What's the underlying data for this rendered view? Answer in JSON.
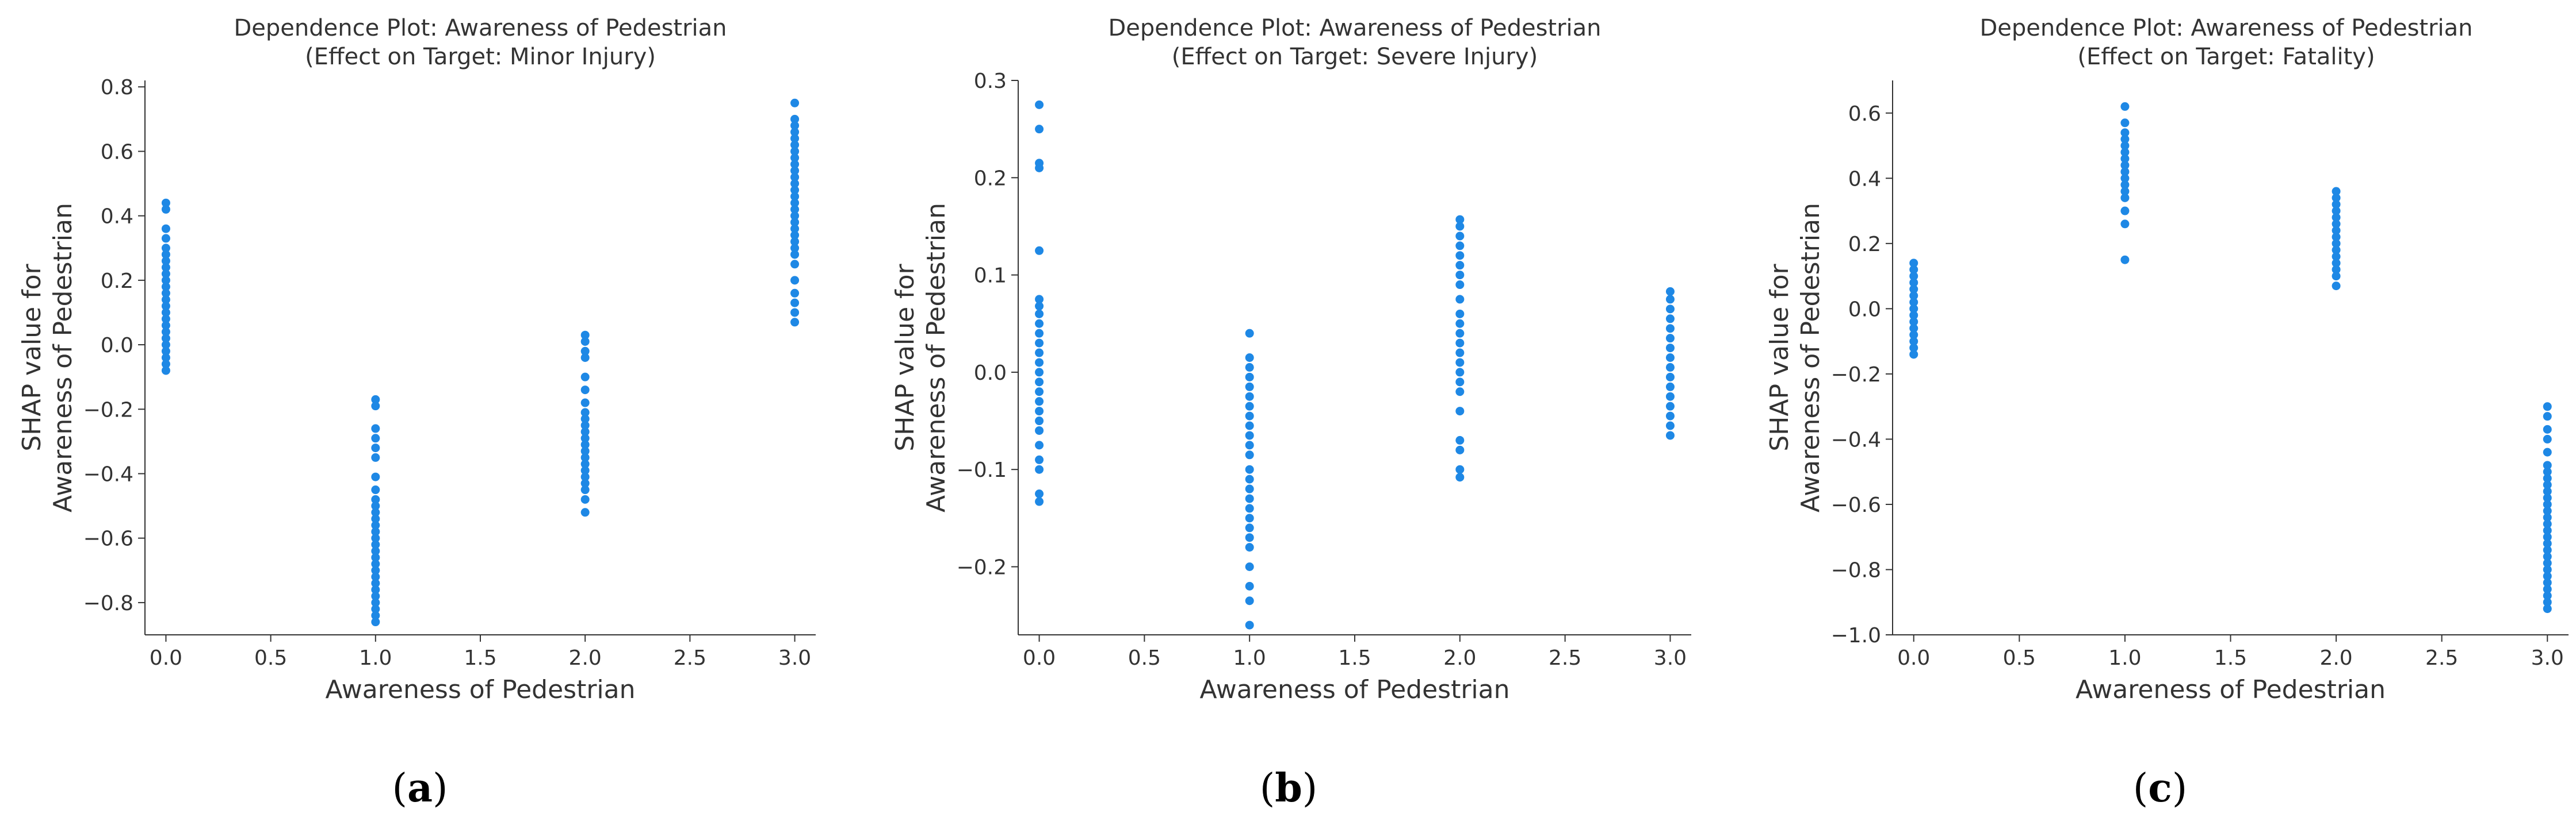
{
  "figure": {
    "point_color": "#1E88E5",
    "axis_color": "#333333"
  },
  "chart_data": [
    {
      "type": "scatter",
      "title_line1": "Dependence Plot: Awareness of Pedestrian",
      "title_line2": "(Effect on Target: Minor Injury)",
      "xlabel": "Awareness of Pedestrian",
      "ylabel_line1": "SHAP value for",
      "ylabel_line2": "Awareness of Pedestrian",
      "xlim": [
        -0.1,
        3.1
      ],
      "ylim": [
        -0.9,
        0.82
      ],
      "xticks": [
        0.0,
        0.5,
        1.0,
        1.5,
        2.0,
        2.5,
        3.0
      ],
      "xtick_labels": [
        "0.0",
        "0.5",
        "1.0",
        "1.5",
        "2.0",
        "2.5",
        "3.0"
      ],
      "yticks": [
        -0.8,
        -0.6,
        -0.4,
        -0.2,
        0.0,
        0.2,
        0.4,
        0.6,
        0.8
      ],
      "ytick_labels": [
        "−0.8",
        "−0.6",
        "−0.4",
        "−0.2",
        "0.0",
        "0.2",
        "0.4",
        "0.6",
        "0.8"
      ],
      "caption_letter": "a",
      "points": [
        {
          "x": 0,
          "y": [
            0.44,
            0.42,
            0.36,
            0.33,
            0.3,
            0.28,
            0.26,
            0.24,
            0.22,
            0.2,
            0.18,
            0.16,
            0.14,
            0.12,
            0.1,
            0.08,
            0.06,
            0.04,
            0.02,
            0.0,
            -0.02,
            -0.04,
            -0.06,
            -0.08
          ]
        },
        {
          "x": 1,
          "y": [
            -0.17,
            -0.19,
            -0.26,
            -0.29,
            -0.32,
            -0.35,
            -0.41,
            -0.45,
            -0.48,
            -0.5,
            -0.52,
            -0.54,
            -0.56,
            -0.58,
            -0.6,
            -0.62,
            -0.64,
            -0.66,
            -0.68,
            -0.7,
            -0.72,
            -0.74,
            -0.76,
            -0.78,
            -0.8,
            -0.82,
            -0.84,
            -0.86
          ]
        },
        {
          "x": 2,
          "y": [
            0.03,
            0.01,
            -0.02,
            -0.04,
            -0.1,
            -0.14,
            -0.18,
            -0.21,
            -0.23,
            -0.25,
            -0.27,
            -0.29,
            -0.31,
            -0.33,
            -0.35,
            -0.37,
            -0.39,
            -0.41,
            -0.43,
            -0.45,
            -0.48,
            -0.52
          ]
        },
        {
          "x": 3,
          "y": [
            0.75,
            0.7,
            0.68,
            0.66,
            0.64,
            0.62,
            0.6,
            0.58,
            0.56,
            0.54,
            0.52,
            0.5,
            0.48,
            0.46,
            0.44,
            0.42,
            0.4,
            0.38,
            0.36,
            0.34,
            0.32,
            0.3,
            0.28,
            0.25,
            0.2,
            0.16,
            0.13,
            0.1,
            0.07
          ]
        }
      ]
    },
    {
      "type": "scatter",
      "title_line1": "Dependence Plot: Awareness of Pedestrian",
      "title_line2": "(Effect on Target: Severe Injury)",
      "xlabel": "Awareness of Pedestrian",
      "ylabel_line1": "SHAP value for",
      "ylabel_line2": "Awareness of Pedestrian",
      "xlim": [
        -0.1,
        3.1
      ],
      "ylim": [
        -0.27,
        0.3
      ],
      "xticks": [
        0.0,
        0.5,
        1.0,
        1.5,
        2.0,
        2.5,
        3.0
      ],
      "xtick_labels": [
        "0.0",
        "0.5",
        "1.0",
        "1.5",
        "2.0",
        "2.5",
        "3.0"
      ],
      "yticks": [
        -0.2,
        -0.1,
        0.0,
        0.1,
        0.2,
        0.3
      ],
      "ytick_labels": [
        "−0.2",
        "−0.1",
        "0.0",
        "0.1",
        "0.2",
        "0.3"
      ],
      "caption_letter": "b",
      "points": [
        {
          "x": 0,
          "y": [
            0.275,
            0.25,
            0.215,
            0.21,
            0.125,
            0.075,
            0.068,
            0.06,
            0.05,
            0.04,
            0.03,
            0.02,
            0.01,
            0.0,
            -0.01,
            -0.02,
            -0.03,
            -0.04,
            -0.05,
            -0.06,
            -0.075,
            -0.09,
            -0.1,
            -0.125,
            -0.133
          ]
        },
        {
          "x": 1,
          "y": [
            0.04,
            0.015,
            0.005,
            -0.005,
            -0.015,
            -0.025,
            -0.035,
            -0.045,
            -0.055,
            -0.065,
            -0.075,
            -0.085,
            -0.1,
            -0.11,
            -0.12,
            -0.13,
            -0.14,
            -0.15,
            -0.16,
            -0.17,
            -0.18,
            -0.2,
            -0.22,
            -0.235,
            -0.26
          ]
        },
        {
          "x": 2,
          "y": [
            0.157,
            0.15,
            0.14,
            0.13,
            0.12,
            0.11,
            0.1,
            0.09,
            0.075,
            0.06,
            0.05,
            0.04,
            0.03,
            0.02,
            0.01,
            0.0,
            -0.01,
            -0.02,
            -0.04,
            -0.07,
            -0.08,
            -0.1,
            -0.108
          ]
        },
        {
          "x": 3,
          "y": [
            0.083,
            0.075,
            0.065,
            0.055,
            0.045,
            0.035,
            0.025,
            0.015,
            0.005,
            -0.005,
            -0.015,
            -0.025,
            -0.035,
            -0.045,
            -0.055,
            -0.065
          ]
        }
      ]
    },
    {
      "type": "scatter",
      "title_line1": "Dependence Plot: Awareness of Pedestrian",
      "title_line2": "(Effect on Target: Fatality)",
      "xlabel": "Awareness of Pedestrian",
      "ylabel_line1": "SHAP value for",
      "ylabel_line2": "Awareness of Pedestrian",
      "xlim": [
        -0.1,
        3.1
      ],
      "ylim": [
        -1.0,
        0.7
      ],
      "xticks": [
        0.0,
        0.5,
        1.0,
        1.5,
        2.0,
        2.5,
        3.0
      ],
      "xtick_labels": [
        "0.0",
        "0.5",
        "1.0",
        "1.5",
        "2.0",
        "2.5",
        "3.0"
      ],
      "yticks": [
        -1.0,
        -0.8,
        -0.6,
        -0.4,
        -0.2,
        0.0,
        0.2,
        0.4,
        0.6
      ],
      "ytick_labels": [
        "−1.0",
        "−0.8",
        "−0.6",
        "−0.4",
        "−0.2",
        "0.0",
        "0.2",
        "0.4",
        "0.6"
      ],
      "caption_letter": "c",
      "points": [
        {
          "x": 0,
          "y": [
            0.14,
            0.12,
            0.1,
            0.08,
            0.06,
            0.04,
            0.02,
            0.0,
            -0.02,
            -0.04,
            -0.06,
            -0.08,
            -0.1,
            -0.12,
            -0.14
          ]
        },
        {
          "x": 1,
          "y": [
            0.62,
            0.57,
            0.54,
            0.52,
            0.5,
            0.48,
            0.46,
            0.44,
            0.42,
            0.4,
            0.38,
            0.36,
            0.34,
            0.3,
            0.26,
            0.15
          ]
        },
        {
          "x": 2,
          "y": [
            0.36,
            0.34,
            0.32,
            0.3,
            0.28,
            0.26,
            0.24,
            0.22,
            0.2,
            0.18,
            0.16,
            0.14,
            0.12,
            0.1,
            0.07
          ]
        },
        {
          "x": 3,
          "y": [
            -0.3,
            -0.33,
            -0.37,
            -0.4,
            -0.44,
            -0.48,
            -0.5,
            -0.52,
            -0.54,
            -0.56,
            -0.58,
            -0.6,
            -0.62,
            -0.64,
            -0.66,
            -0.68,
            -0.7,
            -0.72,
            -0.74,
            -0.76,
            -0.78,
            -0.8,
            -0.82,
            -0.84,
            -0.86,
            -0.88,
            -0.9,
            -0.92
          ]
        }
      ]
    }
  ]
}
